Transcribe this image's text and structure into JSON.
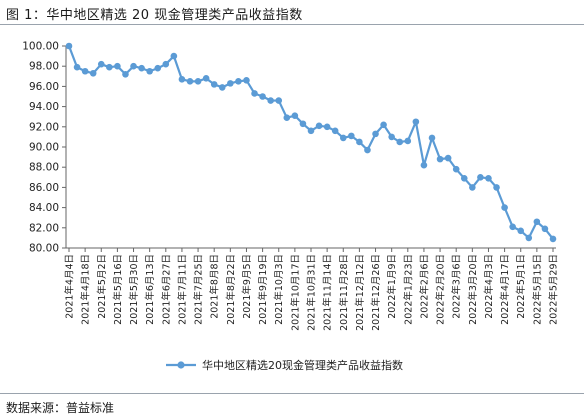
{
  "figure": {
    "title": "图 1：华中地区精选 20 现金管理类产品收益指数",
    "source": "数据来源：普益标准"
  },
  "chart_data": {
    "type": "line",
    "title": "",
    "xlabel": "",
    "ylabel": "",
    "ylim": [
      80.0,
      100.0
    ],
    "yticks": [
      80.0,
      82.0,
      84.0,
      86.0,
      88.0,
      90.0,
      92.0,
      94.0,
      96.0,
      98.0,
      100.0
    ],
    "ytick_labels": [
      "80.00",
      "82.00",
      "84.00",
      "86.00",
      "88.00",
      "90.00",
      "92.00",
      "94.00",
      "96.00",
      "98.00",
      "100.00"
    ],
    "grid": false,
    "legend": "bottom",
    "color": "#5b9bd5",
    "x_labels": [
      "2021年4月4日",
      "2021年4月18日",
      "2021年5月2日",
      "2021年5月16日",
      "2021年5月30日",
      "2021年6月13日",
      "2021年6月27日",
      "2021年7月11日",
      "2021年7月25日",
      "2021年8月8日",
      "2021年8月22日",
      "2021年9月5日",
      "2021年9月19日",
      "2021年10月3日",
      "2021年10月17日",
      "2021年10月31日",
      "2021年11月14日",
      "2021年11月28日",
      "2021年12月12日",
      "2021年12月26日",
      "2022年1月9日",
      "2022年1月23日",
      "2022年2月6日",
      "2022年2月20日",
      "2022年3月6日",
      "2022年3月20日",
      "2022年4月3日",
      "2022年4月17日",
      "2022年5月1日",
      "2022年5月15日",
      "2022年5月29日"
    ],
    "series": [
      {
        "name": "华中地区精选20现金管理类产品收益指数",
        "values": [
          100.0,
          97.9,
          97.5,
          97.3,
          98.2,
          97.9,
          98.0,
          97.2,
          98.0,
          97.8,
          97.5,
          97.8,
          98.2,
          99.0,
          96.7,
          96.5,
          96.5,
          96.8,
          96.2,
          95.9,
          96.3,
          96.5,
          96.6,
          95.3,
          95.0,
          94.6,
          94.6,
          92.9,
          93.1,
          92.3,
          91.6,
          92.1,
          92.0,
          91.6,
          90.9,
          91.1,
          90.5,
          89.7,
          91.3,
          92.2,
          91.0,
          90.5,
          90.6,
          92.5,
          88.2,
          90.9,
          88.8,
          88.9,
          87.8,
          86.9,
          86.0,
          87.0,
          86.9,
          86.0,
          84.0,
          82.1,
          81.7,
          81.0,
          82.6,
          81.9,
          80.9
        ]
      }
    ]
  }
}
